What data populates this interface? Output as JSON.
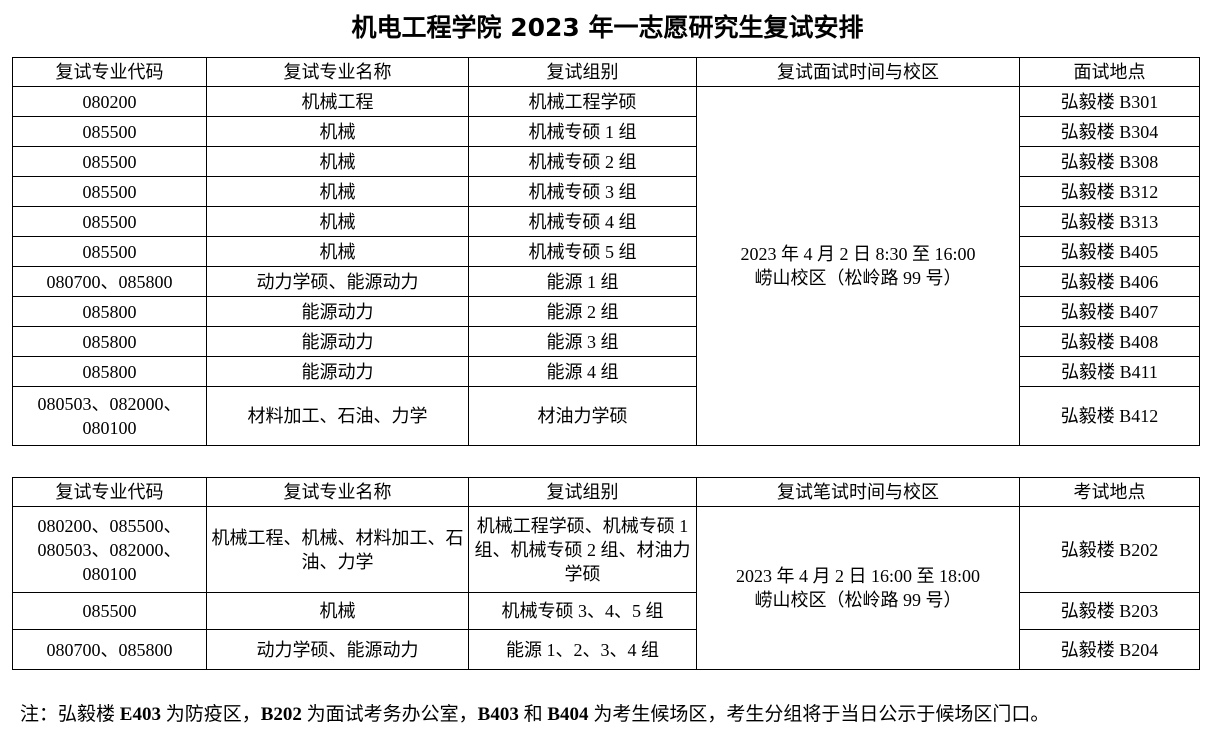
{
  "title": "机电工程学院 2023 年一志愿研究生复试安排",
  "interview_table": {
    "headers": [
      "复试专业代码",
      "复试专业名称",
      "复试组别",
      "复试面试时间与校区",
      "面试地点"
    ],
    "time_campus": [
      "2023 年 4 月 2 日 8:30 至 16:00",
      "崂山校区（松岭路 99 号）"
    ],
    "rows": [
      {
        "code": "080200",
        "name": "机械工程",
        "group": "机械工程学硕",
        "room": "弘毅楼 B301"
      },
      {
        "code": "085500",
        "name": "机械",
        "group": "机械专硕 1 组",
        "room": "弘毅楼 B304"
      },
      {
        "code": "085500",
        "name": "机械",
        "group": "机械专硕 2 组",
        "room": "弘毅楼 B308"
      },
      {
        "code": "085500",
        "name": "机械",
        "group": "机械专硕 3 组",
        "room": "弘毅楼 B312"
      },
      {
        "code": "085500",
        "name": "机械",
        "group": "机械专硕 4 组",
        "room": "弘毅楼 B313"
      },
      {
        "code": "085500",
        "name": "机械",
        "group": "机械专硕 5 组",
        "room": "弘毅楼 B405"
      },
      {
        "code": "080700、085800",
        "name": "动力学硕、能源动力",
        "group": "能源 1 组",
        "room": "弘毅楼 B406"
      },
      {
        "code": "085800",
        "name": "能源动力",
        "group": "能源 2 组",
        "room": "弘毅楼 B407"
      },
      {
        "code": "085800",
        "name": "能源动力",
        "group": "能源 3 组",
        "room": "弘毅楼 B408"
      },
      {
        "code": "085800",
        "name": "能源动力",
        "group": "能源 4 组",
        "room": "弘毅楼 B411"
      },
      {
        "code": "080503、082000、080100",
        "name": "材料加工、石油、力学",
        "group": "材油力学硕",
        "room": "弘毅楼 B412"
      }
    ]
  },
  "written_table": {
    "headers": [
      "复试专业代码",
      "复试专业名称",
      "复试组别",
      "复试笔试时间与校区",
      "考试地点"
    ],
    "time_campus": [
      "2023 年 4 月 2 日 16:00 至 18:00",
      "崂山校区（松岭路 99 号）"
    ],
    "rows": [
      {
        "code": "080200、085500、080503、082000、080100",
        "name": "机械工程、机械、材料加工、石油、力学",
        "group": "机械工程学硕、机械专硕 1 组、机械专硕 2 组、材油力学硕",
        "room": "弘毅楼 B202"
      },
      {
        "code": "085500",
        "name": "机械",
        "group": "机械专硕 3、4、5 组",
        "room": "弘毅楼 B203"
      },
      {
        "code": "080700、085800",
        "name": "动力学硕、能源动力",
        "group": "能源 1、2、3、4 组",
        "room": "弘毅楼 B204"
      }
    ]
  },
  "note": {
    "parts": [
      "注：弘毅楼 ",
      "E403",
      " 为防疫区，",
      "B202",
      " 为面试考务办公室，",
      "B403",
      " 和 ",
      "B404",
      " 为考生候场区，考生分组将于当日公示于候场区门口。"
    ]
  }
}
